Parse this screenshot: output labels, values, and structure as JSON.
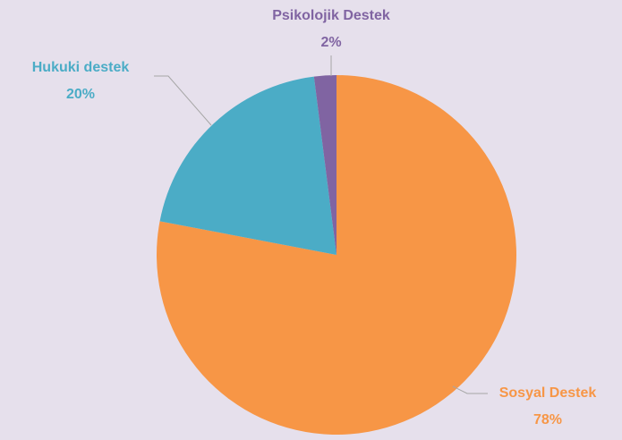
{
  "chart_data": {
    "type": "pie",
    "categories": [
      "Sosyal Destek",
      "Hukuki destek",
      "Psikolojik Destek"
    ],
    "values": [
      78,
      20,
      2
    ],
    "value_labels": [
      "78%",
      "20%",
      "2%"
    ],
    "colors": [
      "#F79646",
      "#4BACC6",
      "#8064A2"
    ]
  }
}
